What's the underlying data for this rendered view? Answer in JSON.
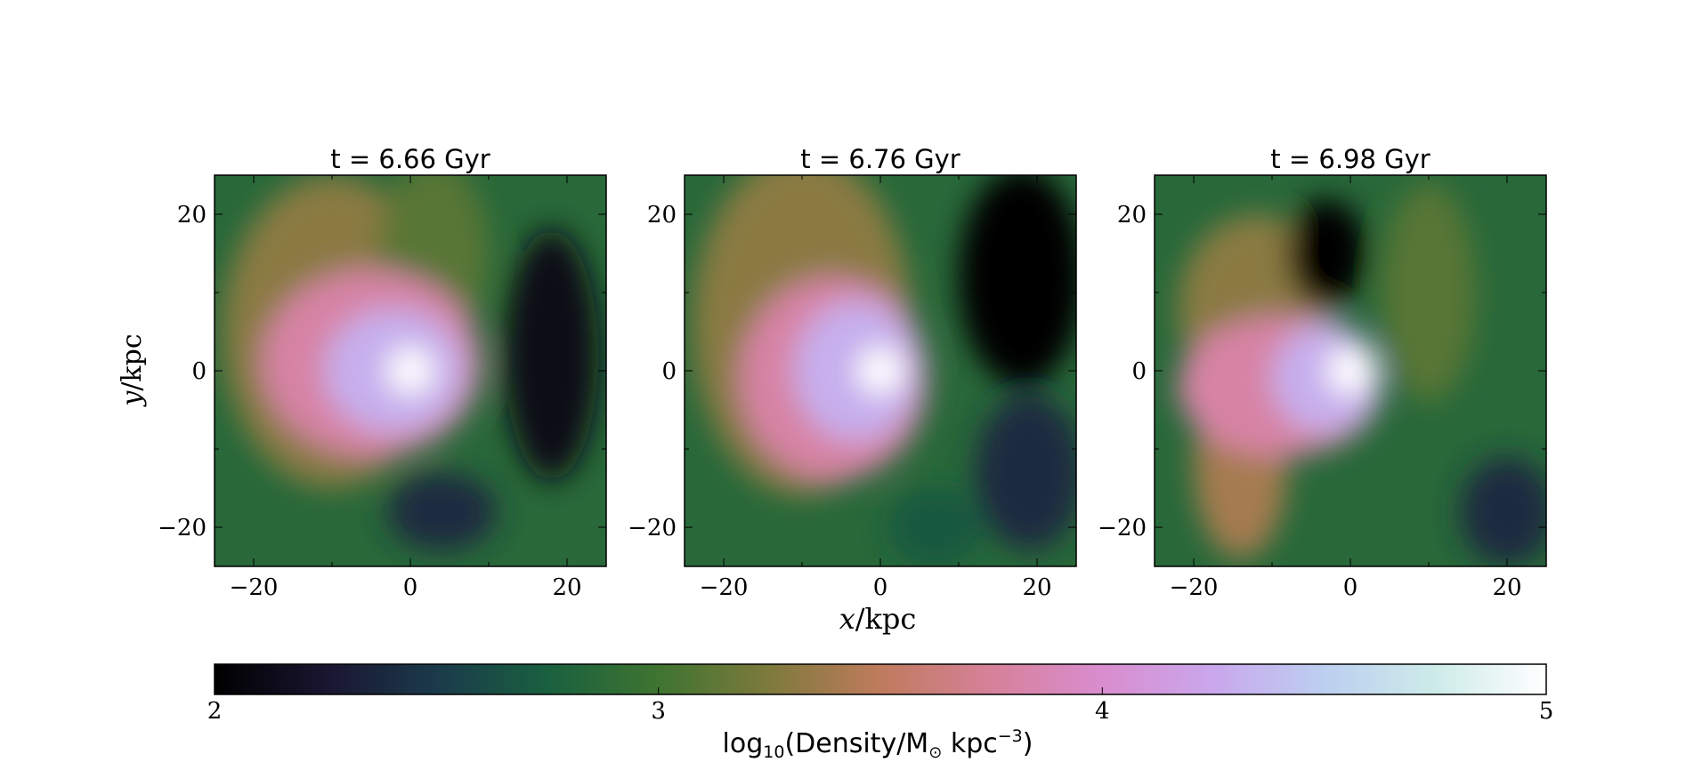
{
  "chart_data": {
    "type": "heatmap",
    "xlabel_var": "x",
    "xlabel_unit": "/kpc",
    "ylabel_var": "y",
    "ylabel_unit": "/kpc",
    "xlim": [
      -25,
      25
    ],
    "ylim": [
      -25,
      25
    ],
    "xticks": [
      -20,
      0,
      20
    ],
    "yticks": [
      -20,
      0,
      20
    ],
    "grid": false,
    "panels": [
      {
        "title": "t = 6.66 Gyr",
        "blobs": [
          {
            "x": 0,
            "y": 0,
            "rx": 3,
            "ry": 3,
            "v": 5.0
          },
          {
            "x": -2,
            "y": 0,
            "rx": 9,
            "ry": 8,
            "v": 4.3
          },
          {
            "x": -5,
            "y": 1,
            "rx": 14,
            "ry": 12,
            "v": 3.8
          },
          {
            "x": -10,
            "y": 5,
            "rx": 14,
            "ry": 20,
            "v": 3.3
          },
          {
            "x": 3,
            "y": 15,
            "rx": 7,
            "ry": 12,
            "v": 3.1
          },
          {
            "x": 18,
            "y": 2,
            "rx": 6,
            "ry": 16,
            "v": 2.1
          },
          {
            "x": 4,
            "y": -18,
            "rx": 7,
            "ry": 5,
            "v": 2.4
          }
        ]
      },
      {
        "title": "t = 6.76 Gyr",
        "blobs": [
          {
            "x": 0,
            "y": 0,
            "rx": 3,
            "ry": 3,
            "v": 5.0
          },
          {
            "x": -3,
            "y": 0,
            "rx": 8,
            "ry": 9,
            "v": 4.3
          },
          {
            "x": -6,
            "y": -1,
            "rx": 12,
            "ry": 13,
            "v": 3.8
          },
          {
            "x": -10,
            "y": 6,
            "rx": 14,
            "ry": 22,
            "v": 3.3
          },
          {
            "x": 18,
            "y": 12,
            "rx": 8,
            "ry": 14,
            "v": 2.0
          },
          {
            "x": 19,
            "y": -13,
            "rx": 7,
            "ry": 10,
            "v": 2.4
          },
          {
            "x": 7,
            "y": -20,
            "rx": 6,
            "ry": 5,
            "v": 2.7
          }
        ]
      },
      {
        "title": "t = 6.98 Gyr",
        "blobs": [
          {
            "x": 0,
            "y": 0,
            "rx": 3,
            "ry": 3,
            "v": 5.0
          },
          {
            "x": -3,
            "y": -1,
            "rx": 7,
            "ry": 7,
            "v": 4.3
          },
          {
            "x": -9,
            "y": -2,
            "rx": 13,
            "ry": 9,
            "v": 3.8
          },
          {
            "x": -14,
            "y": -12,
            "rx": 6,
            "ry": 12,
            "v": 3.4
          },
          {
            "x": -12,
            "y": 8,
            "rx": 10,
            "ry": 12,
            "v": 3.3
          },
          {
            "x": -3,
            "y": 15,
            "rx": 5,
            "ry": 7,
            "v": 2.0
          },
          {
            "x": 20,
            "y": -18,
            "rx": 6,
            "ry": 7,
            "v": 2.4
          },
          {
            "x": 10,
            "y": 10,
            "rx": 6,
            "ry": 14,
            "v": 3.1
          }
        ]
      }
    ],
    "colorbar": {
      "label_prefix": "log",
      "label_sub": "10",
      "label_mid": "(Density/M",
      "label_sun": "⊙",
      "label_unit": " kpc",
      "label_sup": "−3",
      "label_close": ")",
      "range": [
        2,
        5
      ],
      "ticks": [
        2,
        3,
        4,
        5
      ],
      "colormap": "cubehelix",
      "stops": [
        {
          "v": 2.0,
          "color": "#000000"
        },
        {
          "v": 2.25,
          "color": "#1a1530"
        },
        {
          "v": 2.5,
          "color": "#1b3a4b"
        },
        {
          "v": 2.75,
          "color": "#19603f"
        },
        {
          "v": 3.0,
          "color": "#3f7431"
        },
        {
          "v": 3.25,
          "color": "#7d7a3c"
        },
        {
          "v": 3.5,
          "color": "#bf7b5d"
        },
        {
          "v": 3.75,
          "color": "#d6819a"
        },
        {
          "v": 4.0,
          "color": "#d98dce"
        },
        {
          "v": 4.25,
          "color": "#c9a7ec"
        },
        {
          "v": 4.5,
          "color": "#bccff0"
        },
        {
          "v": 4.75,
          "color": "#cdebe9"
        },
        {
          "v": 5.0,
          "color": "#ffffff"
        }
      ]
    }
  }
}
